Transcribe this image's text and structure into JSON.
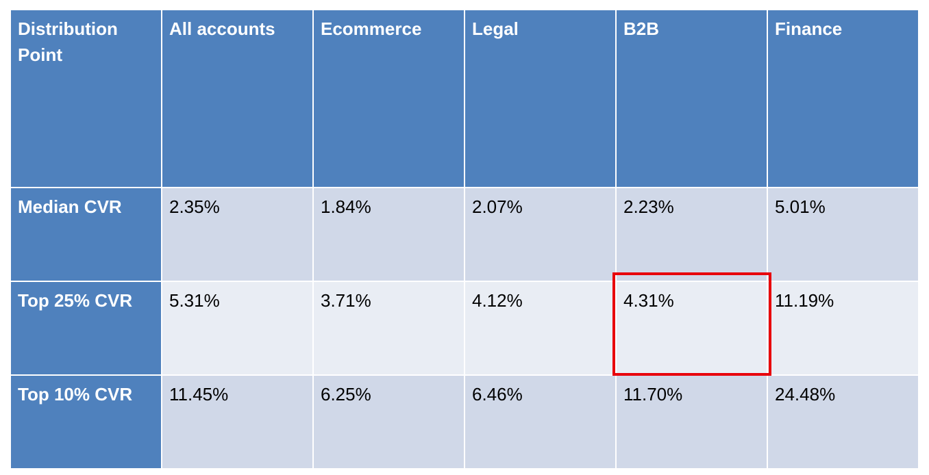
{
  "chart_data": {
    "type": "table",
    "columns": [
      "Distribution Point",
      "All accounts",
      "Ecommerce",
      "Legal",
      "B2B",
      "Finance"
    ],
    "rows": [
      {
        "label": "Median CVR",
        "values": [
          "2.35%",
          "1.84%",
          "2.07%",
          "2.23%",
          "5.01%"
        ]
      },
      {
        "label": "Top 25% CVR",
        "values": [
          "5.31%",
          "3.71%",
          "4.12%",
          "4.31%",
          "11.19%"
        ]
      },
      {
        "label": "Top 10% CVR",
        "values": [
          "11.45%",
          "6.25%",
          "6.46%",
          "11.70%",
          "24.48%"
        ]
      }
    ],
    "highlight": {
      "row": "Top 25% CVR",
      "column": "B2B",
      "color": "#e8000b"
    }
  },
  "colors": {
    "header": "#4f81bd",
    "row_dark": "#d0d8e8",
    "row_light": "#e9edf4",
    "highlight": "#e8000b"
  }
}
